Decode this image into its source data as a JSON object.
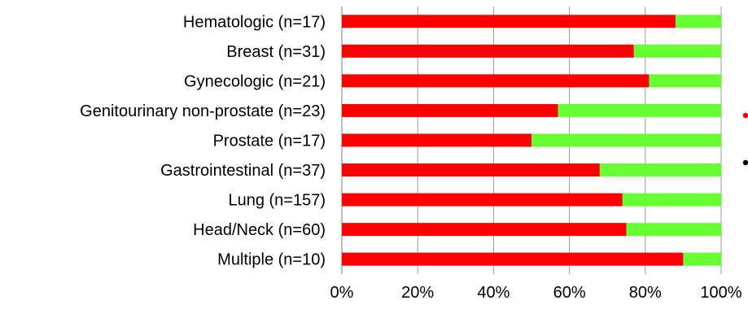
{
  "chart_data": {
    "type": "bar",
    "orientation": "horizontal",
    "stacked": true,
    "categories": [
      "Hematologic (n=17)",
      "Breast (n=31)",
      "Gynecologic (n=21)",
      "Genitourinary non-prostate (n=23)",
      "Prostate (n=17)",
      "Gastrointestinal (n=37)",
      "Lung (n=157)",
      "Head/Neck (n=60)",
      "Multiple (n=10)"
    ],
    "series": [
      {
        "color": "#ff0000",
        "values": [
          88,
          77,
          81,
          57,
          50,
          68,
          74,
          75,
          90
        ]
      },
      {
        "color": "#66ff33",
        "values": [
          12,
          23,
          19,
          43,
          50,
          32,
          26,
          25,
          10
        ]
      }
    ],
    "x_ticks": [
      "0%",
      "20%",
      "40%",
      "60%",
      "80%",
      "100%"
    ],
    "xlim": [
      0,
      100
    ],
    "grid": true,
    "legend_markers": [
      {
        "color": "#ff0000"
      },
      {
        "color": "#000000"
      }
    ]
  }
}
